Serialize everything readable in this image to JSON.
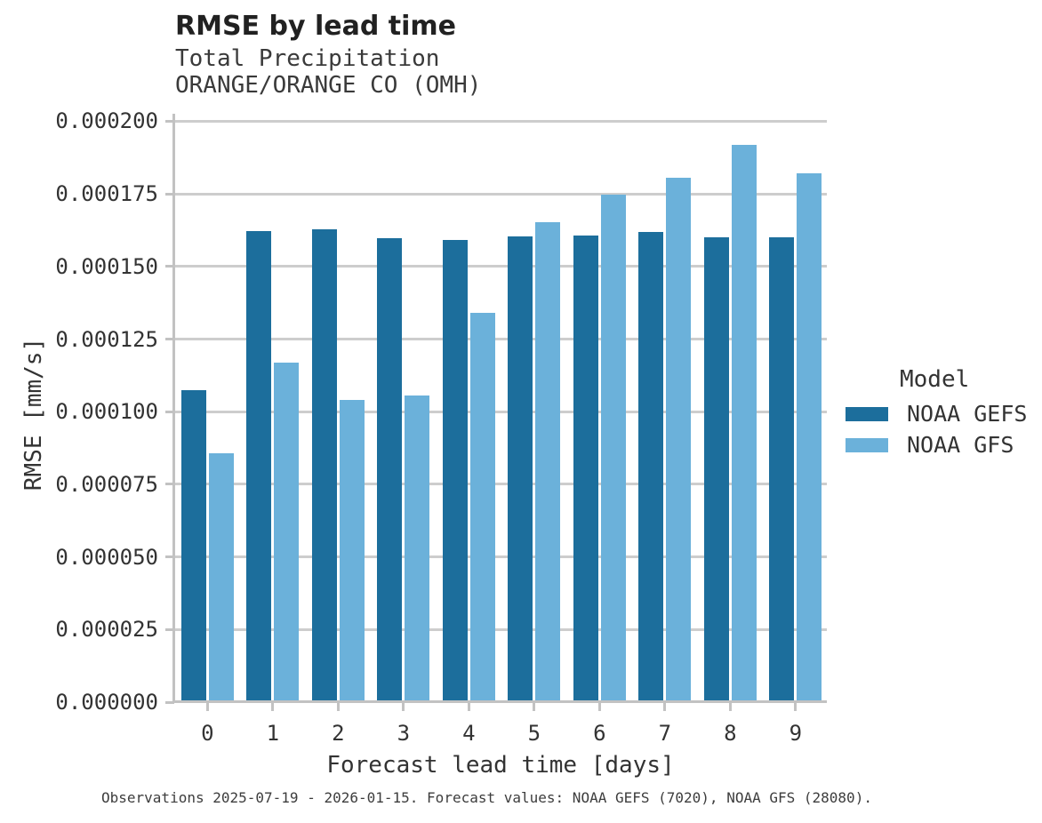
{
  "chart_data": {
    "type": "bar",
    "title": "RMSE by lead time",
    "subtitle": [
      "Total Precipitation",
      "ORANGE/ORANGE CO (OMH)"
    ],
    "xlabel": "Forecast lead time [days]",
    "ylabel": "RMSE [mm/s]",
    "categories": [
      "0",
      "1",
      "2",
      "3",
      "4",
      "5",
      "6",
      "7",
      "8",
      "9"
    ],
    "ylim": [
      0,
      0.0002
    ],
    "ytick_step": 2.5e-05,
    "ytick_labels": [
      "0.000000",
      "0.000025",
      "0.000050",
      "0.000075",
      "0.000100",
      "0.000125",
      "0.000150",
      "0.000175",
      "0.000200"
    ],
    "grid": true,
    "legend": {
      "title": "Model",
      "position": "right"
    },
    "series": [
      {
        "name": "NOAA GEFS",
        "color": "#1c6e9c",
        "values": [
          0.0001074,
          0.0001622,
          0.0001628,
          0.0001596,
          0.000159,
          0.0001604,
          0.0001607,
          0.0001619,
          0.0001601,
          0.00016
        ]
      },
      {
        "name": "NOAA GFS",
        "color": "#6bb1da",
        "values": [
          8.56e-05,
          0.0001168,
          0.0001039,
          0.0001057,
          0.0001341,
          0.0001652,
          0.0001748,
          0.0001804,
          0.0001919,
          0.0001821
        ]
      }
    ],
    "caption": "Observations 2025-07-19 - 2026-01-15. Forecast values: NOAA GEFS (7020), NOAA GFS (28080)."
  }
}
